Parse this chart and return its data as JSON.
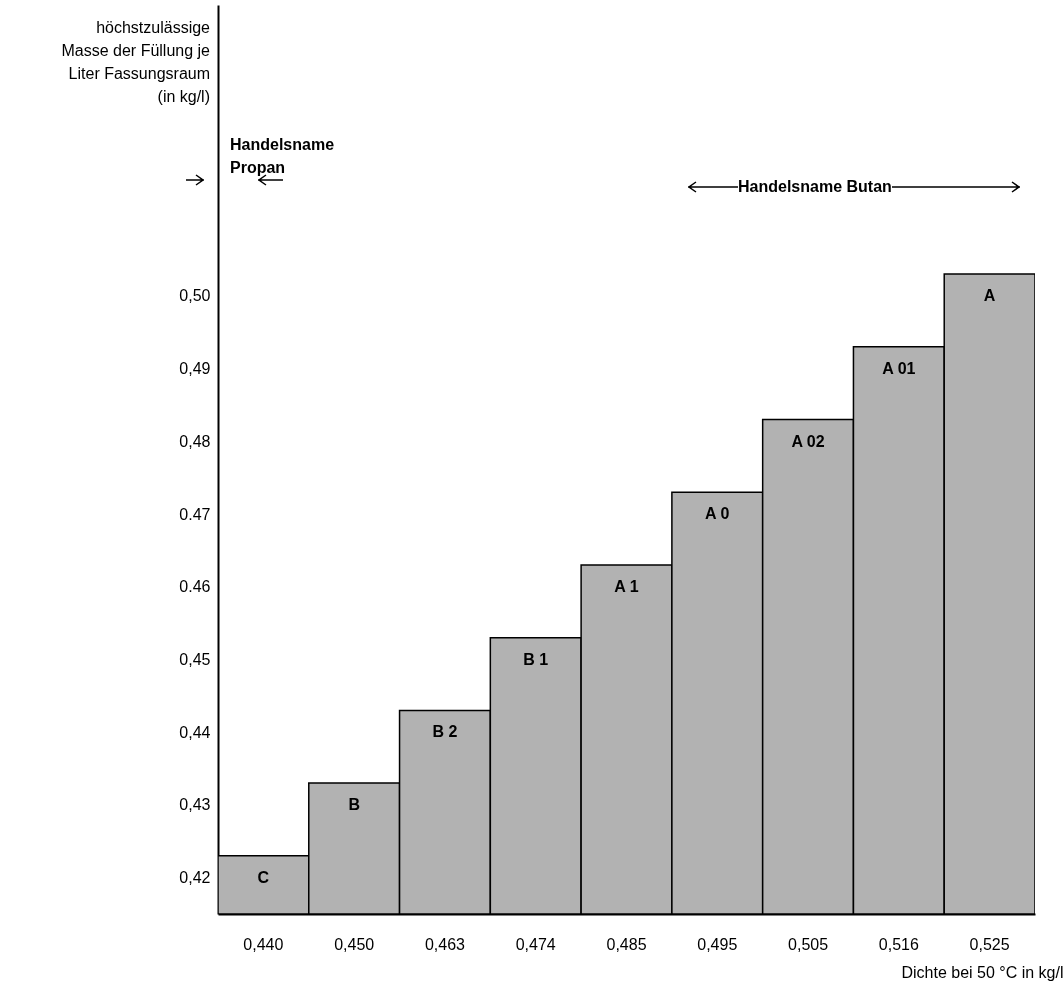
{
  "chart_data": {
    "type": "bar",
    "ylabel": "höchstzulässige Masse der Füllung je Liter Fassungsraum (in kg/l)",
    "xlabel": "Dichte bei 50 °C in kg/l",
    "categories": [
      "0,440",
      "0,450",
      "0,463",
      "0,474",
      "0,485",
      "0,495",
      "0,505",
      "0,516",
      "0,525"
    ],
    "values": [
      0.423,
      0.433,
      0.443,
      0.453,
      0.463,
      0.473,
      0.483,
      0.493,
      0.503
    ],
    "value_labels": [
      "C",
      "B",
      "B 2",
      "B 1",
      "A 1",
      "A 0",
      "A 02",
      "A 01",
      "A"
    ],
    "color": "#b2b2b2",
    "ylim": [
      0.415,
      0.54
    ],
    "yticks": [
      {
        "value": 0.42,
        "label": "0,42"
      },
      {
        "value": 0.43,
        "label": "0,43"
      },
      {
        "value": 0.44,
        "label": "0,44"
      },
      {
        "value": 0.45,
        "label": "0,45"
      },
      {
        "value": 0.46,
        "label": "0.46"
      },
      {
        "value": 0.47,
        "label": "0.47"
      },
      {
        "value": 0.48,
        "label": "0,48"
      },
      {
        "value": 0.49,
        "label": "0,49"
      },
      {
        "value": 0.5,
        "label": "0,50"
      }
    ],
    "annotations": [
      "Handelsname Propan",
      "Handelsname Butan"
    ],
    "grid": false
  }
}
